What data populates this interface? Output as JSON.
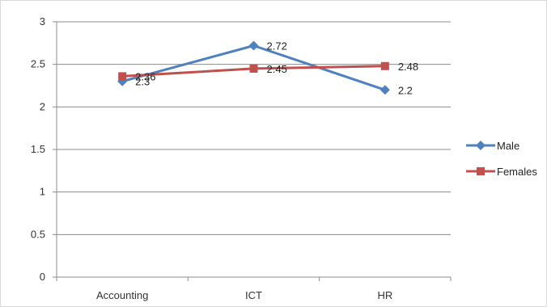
{
  "chart_data": {
    "type": "line",
    "title": "",
    "xlabel": "",
    "ylabel": "",
    "categories": [
      "Accounting",
      "ICT",
      "HR"
    ],
    "ylim": [
      0,
      3
    ],
    "yticks": [
      "0",
      "0.5",
      "1",
      "1.5",
      "2",
      "2.5",
      "3"
    ],
    "grid": true,
    "legend": "right",
    "series": [
      {
        "name": "Male",
        "values": [
          2.3,
          2.72,
          2.2
        ],
        "labels": [
          "2.3",
          "2.72",
          "2.2"
        ],
        "color": "#4F81BD",
        "marker": "diamond"
      },
      {
        "name": "Females",
        "values": [
          2.36,
          2.45,
          2.48
        ],
        "labels": [
          "2.36",
          "2.45",
          "2.48"
        ],
        "color": "#C0504D",
        "marker": "square"
      }
    ]
  }
}
